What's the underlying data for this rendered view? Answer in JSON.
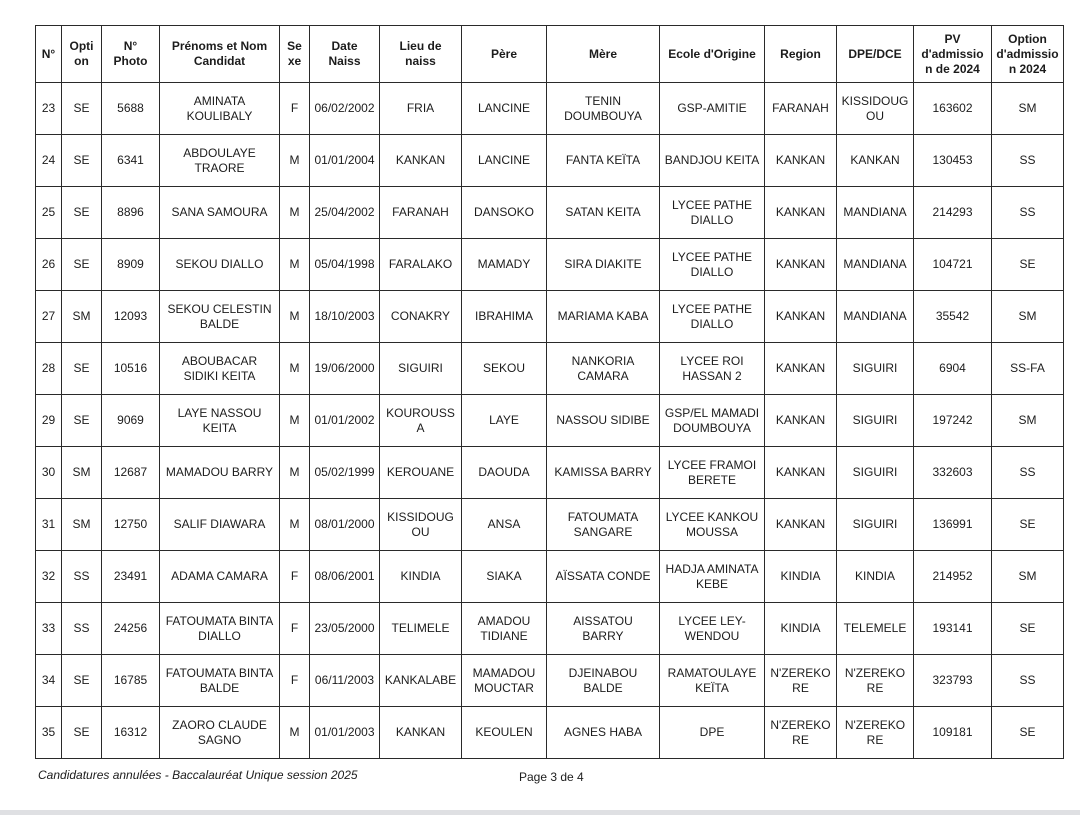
{
  "table": {
    "headers": [
      "N°",
      "Option",
      "N° Photo",
      "Prénoms et Nom Candidat",
      "Sexe",
      "Date Naiss",
      "Lieu de naiss",
      "Père",
      "Mère",
      "Ecole d'Origine",
      "Region",
      "DPE/DCE",
      "PV d'admission de 2024",
      "Option d'admission 2024"
    ],
    "rows": [
      [
        "23",
        "SE",
        "5688",
        "AMINATA KOULIBALY",
        "F",
        "06/02/2002",
        "FRIA",
        "LANCINE",
        "TENIN DOUMBOUYA",
        "GSP-AMITIE",
        "FARANAH",
        "KISSIDOUGOU",
        "163602",
        "SM"
      ],
      [
        "24",
        "SE",
        "6341",
        "ABDOULAYE TRAORE",
        "M",
        "01/01/2004",
        "KANKAN",
        "LANCINE",
        "FANTA KEÏTA",
        "BANDJOU KEITA",
        "KANKAN",
        "KANKAN",
        "130453",
        "SS"
      ],
      [
        "25",
        "SE",
        "8896",
        "SANA SAMOURA",
        "M",
        "25/04/2002",
        "FARANAH",
        "DANSOKO",
        "SATAN KEITA",
        "LYCEE PATHE DIALLO",
        "KANKAN",
        "MANDIANA",
        "214293",
        "SS"
      ],
      [
        "26",
        "SE",
        "8909",
        "SEKOU DIALLO",
        "M",
        "05/04/1998",
        "FARALAKO",
        "MAMADY",
        "SIRA DIAKITE",
        "LYCEE PATHE DIALLO",
        "KANKAN",
        "MANDIANA",
        "104721",
        "SE"
      ],
      [
        "27",
        "SM",
        "12093",
        "SEKOU CELESTIN BALDE",
        "M",
        "18/10/2003",
        "CONAKRY",
        "IBRAHIMA",
        "MARIAMA KABA",
        "LYCEE PATHE DIALLO",
        "KANKAN",
        "MANDIANA",
        "35542",
        "SM"
      ],
      [
        "28",
        "SE",
        "10516",
        "ABOUBACAR SIDIKI KEITA",
        "M",
        "19/06/2000",
        "SIGUIRI",
        "SEKOU",
        "NANKORIA CAMARA",
        "LYCEE ROI HASSAN 2",
        "KANKAN",
        "SIGUIRI",
        "6904",
        "SS-FA"
      ],
      [
        "29",
        "SE",
        "9069",
        "LAYE NASSOU KEITA",
        "M",
        "01/01/2002",
        "KOUROUSSA",
        "LAYE",
        "NASSOU SIDIBE",
        "GSP/EL MAMADI DOUMBOUYA",
        "KANKAN",
        "SIGUIRI",
        "197242",
        "SM"
      ],
      [
        "30",
        "SM",
        "12687",
        "MAMADOU BARRY",
        "M",
        "05/02/1999",
        "KEROUANE",
        "DAOUDA",
        "KAMISSA BARRY",
        "LYCEE FRAMOI BERETE",
        "KANKAN",
        "SIGUIRI",
        "332603",
        "SS"
      ],
      [
        "31",
        "SM",
        "12750",
        "SALIF DIAWARA",
        "M",
        "08/01/2000",
        "KISSIDOUGOU",
        "ANSA",
        "FATOUMATA SANGARE",
        "LYCEE KANKOU MOUSSA",
        "KANKAN",
        "SIGUIRI",
        "136991",
        "SE"
      ],
      [
        "32",
        "SS",
        "23491",
        "ADAMA CAMARA",
        "F",
        "08/06/2001",
        "KINDIA",
        "SIAKA",
        "AÏSSATA CONDE",
        "HADJA AMINATA KEBE",
        "KINDIA",
        "KINDIA",
        "214952",
        "SM"
      ],
      [
        "33",
        "SS",
        "24256",
        "FATOUMATA BINTA DIALLO",
        "F",
        "23/05/2000",
        "TELIMELE",
        "AMADOU TIDIANE",
        "AISSATOU BARRY",
        "LYCEE LEY-WENDOU",
        "KINDIA",
        "TELEMELE",
        "193141",
        "SE"
      ],
      [
        "34",
        "SE",
        "16785",
        "FATOUMATA BINTA BALDE",
        "F",
        "06/11/2003",
        "KANKALABE",
        "MAMADOU MOUCTAR",
        "DJEINABOU BALDE",
        "RAMATOULAYE KEÏTA",
        "N'ZEREKORE",
        "N'ZEREKORE",
        "323793",
        "SS"
      ],
      [
        "35",
        "SE",
        "16312",
        "ZAORO CLAUDE SAGNO",
        "M",
        "01/01/2003",
        "KANKAN",
        "KEOULEN",
        "AGNES HABA",
        "DPE",
        "N'ZEREKORE",
        "N'ZEREKORE",
        "109181",
        "SE"
      ]
    ]
  },
  "footer": {
    "left_text": "Candidatures annulées - Baccalauréat Unique session 2025",
    "page_text": "Page 3 de 4"
  }
}
